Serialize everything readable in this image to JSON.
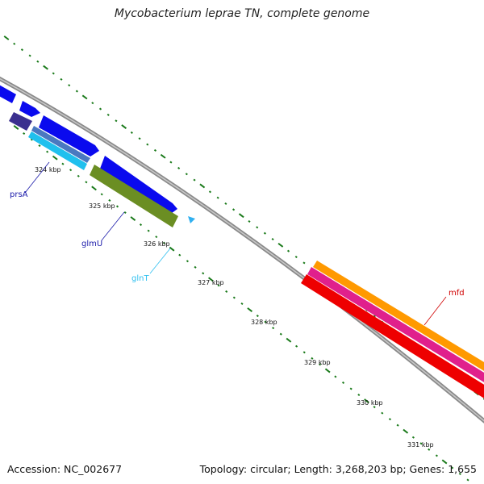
{
  "header": {
    "title": "Mycobacterium leprae TN, complete genome"
  },
  "footer": {
    "accession": "Accession: NC_002677",
    "summary": "Topology: circular; Length: 3,268,203 bp; Genes: 1,655"
  },
  "scale": {
    "ticks": [
      "324 kbp",
      "325 kbp",
      "326 kbp",
      "327 kbp",
      "328 kbp",
      "329 kbp",
      "330 kbp",
      "331 kbp"
    ]
  },
  "genes": [
    {
      "name": "prsA",
      "color": "#1010c8"
    },
    {
      "name": "glmU",
      "color": "#1010c8"
    },
    {
      "name": "glnT",
      "color": "#30c0f0"
    },
    {
      "name": "mfd",
      "color": "#e00000"
    }
  ],
  "colors": {
    "backbone": "#8a8a8a",
    "cds_forward": "#0a0aee",
    "cds_reverse": "#3a2f8f",
    "cyan_feature": "#20c0ee",
    "olive_feature": "#6b8e23",
    "orange_feature": "#ff9900",
    "magenta_feature": "#e0208c",
    "red_feature": "#ee0000",
    "tick": "#1a7a1a"
  }
}
